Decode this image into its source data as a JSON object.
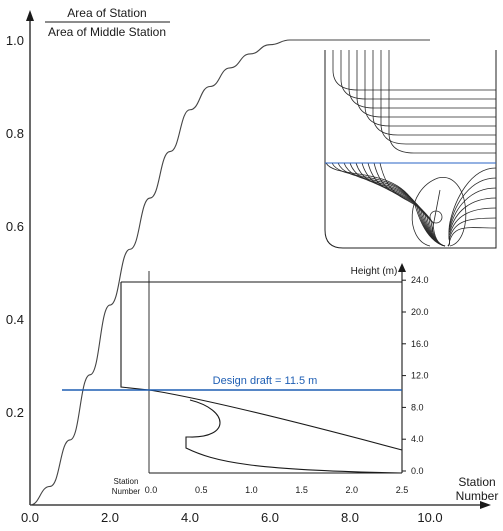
{
  "chart_data": [
    {
      "type": "line",
      "title": "",
      "ylabel_numerator": "Area of Station",
      "ylabel_denominator": "Area of Middle Station",
      "xlabel_line1": "Station",
      "xlabel_line2": "Number",
      "xlim": [
        0,
        12
      ],
      "ylim": [
        0,
        1.05
      ],
      "x_ticks": [
        "0.0",
        "2.0",
        "4.0",
        "6.0",
        "8.0",
        "10.0"
      ],
      "x_tick_values": [
        0,
        2,
        4,
        6,
        8,
        10
      ],
      "y_ticks": [
        "0.2",
        "0.4",
        "0.6",
        "0.8",
        "1.0"
      ],
      "y_tick_values": [
        0.2,
        0.4,
        0.6,
        0.8,
        1.0
      ],
      "series": [
        {
          "x": [
            0,
            0.5,
            1,
            1.5,
            2,
            2.5,
            3,
            3.5,
            4,
            4.5,
            5,
            5.5,
            6,
            6.5,
            7,
            8,
            9,
            10
          ],
          "y": [
            0.0,
            0.04,
            0.14,
            0.28,
            0.43,
            0.55,
            0.66,
            0.76,
            0.85,
            0.9,
            0.94,
            0.97,
            0.99,
            1.0,
            1.0,
            1.0,
            1.0,
            1.0
          ]
        }
      ]
    },
    {
      "type": "line",
      "title": "",
      "ylabel": "Height (m)",
      "xlabel_line1": "Station",
      "xlabel_line2": "Number",
      "xlim": [
        0,
        2.5
      ],
      "ylim": [
        0,
        28
      ],
      "x_ticks": [
        "0.0",
        "0.5",
        "1.0",
        "1.5",
        "2.0",
        "2.5"
      ],
      "x_tick_values": [
        0,
        0.5,
        1.0,
        1.5,
        2.0,
        2.5
      ],
      "y_ticks": [
        "0.0",
        "4.0",
        "8.0",
        "12.0",
        "16.0",
        "20.0",
        "24.0"
      ],
      "y_tick_values": [
        0,
        4,
        8,
        12,
        16,
        20,
        24
      ],
      "annotation": "Design draft = 11.5 m",
      "design_draft": 11.5,
      "draft_color": "#1f5fb4"
    }
  ]
}
